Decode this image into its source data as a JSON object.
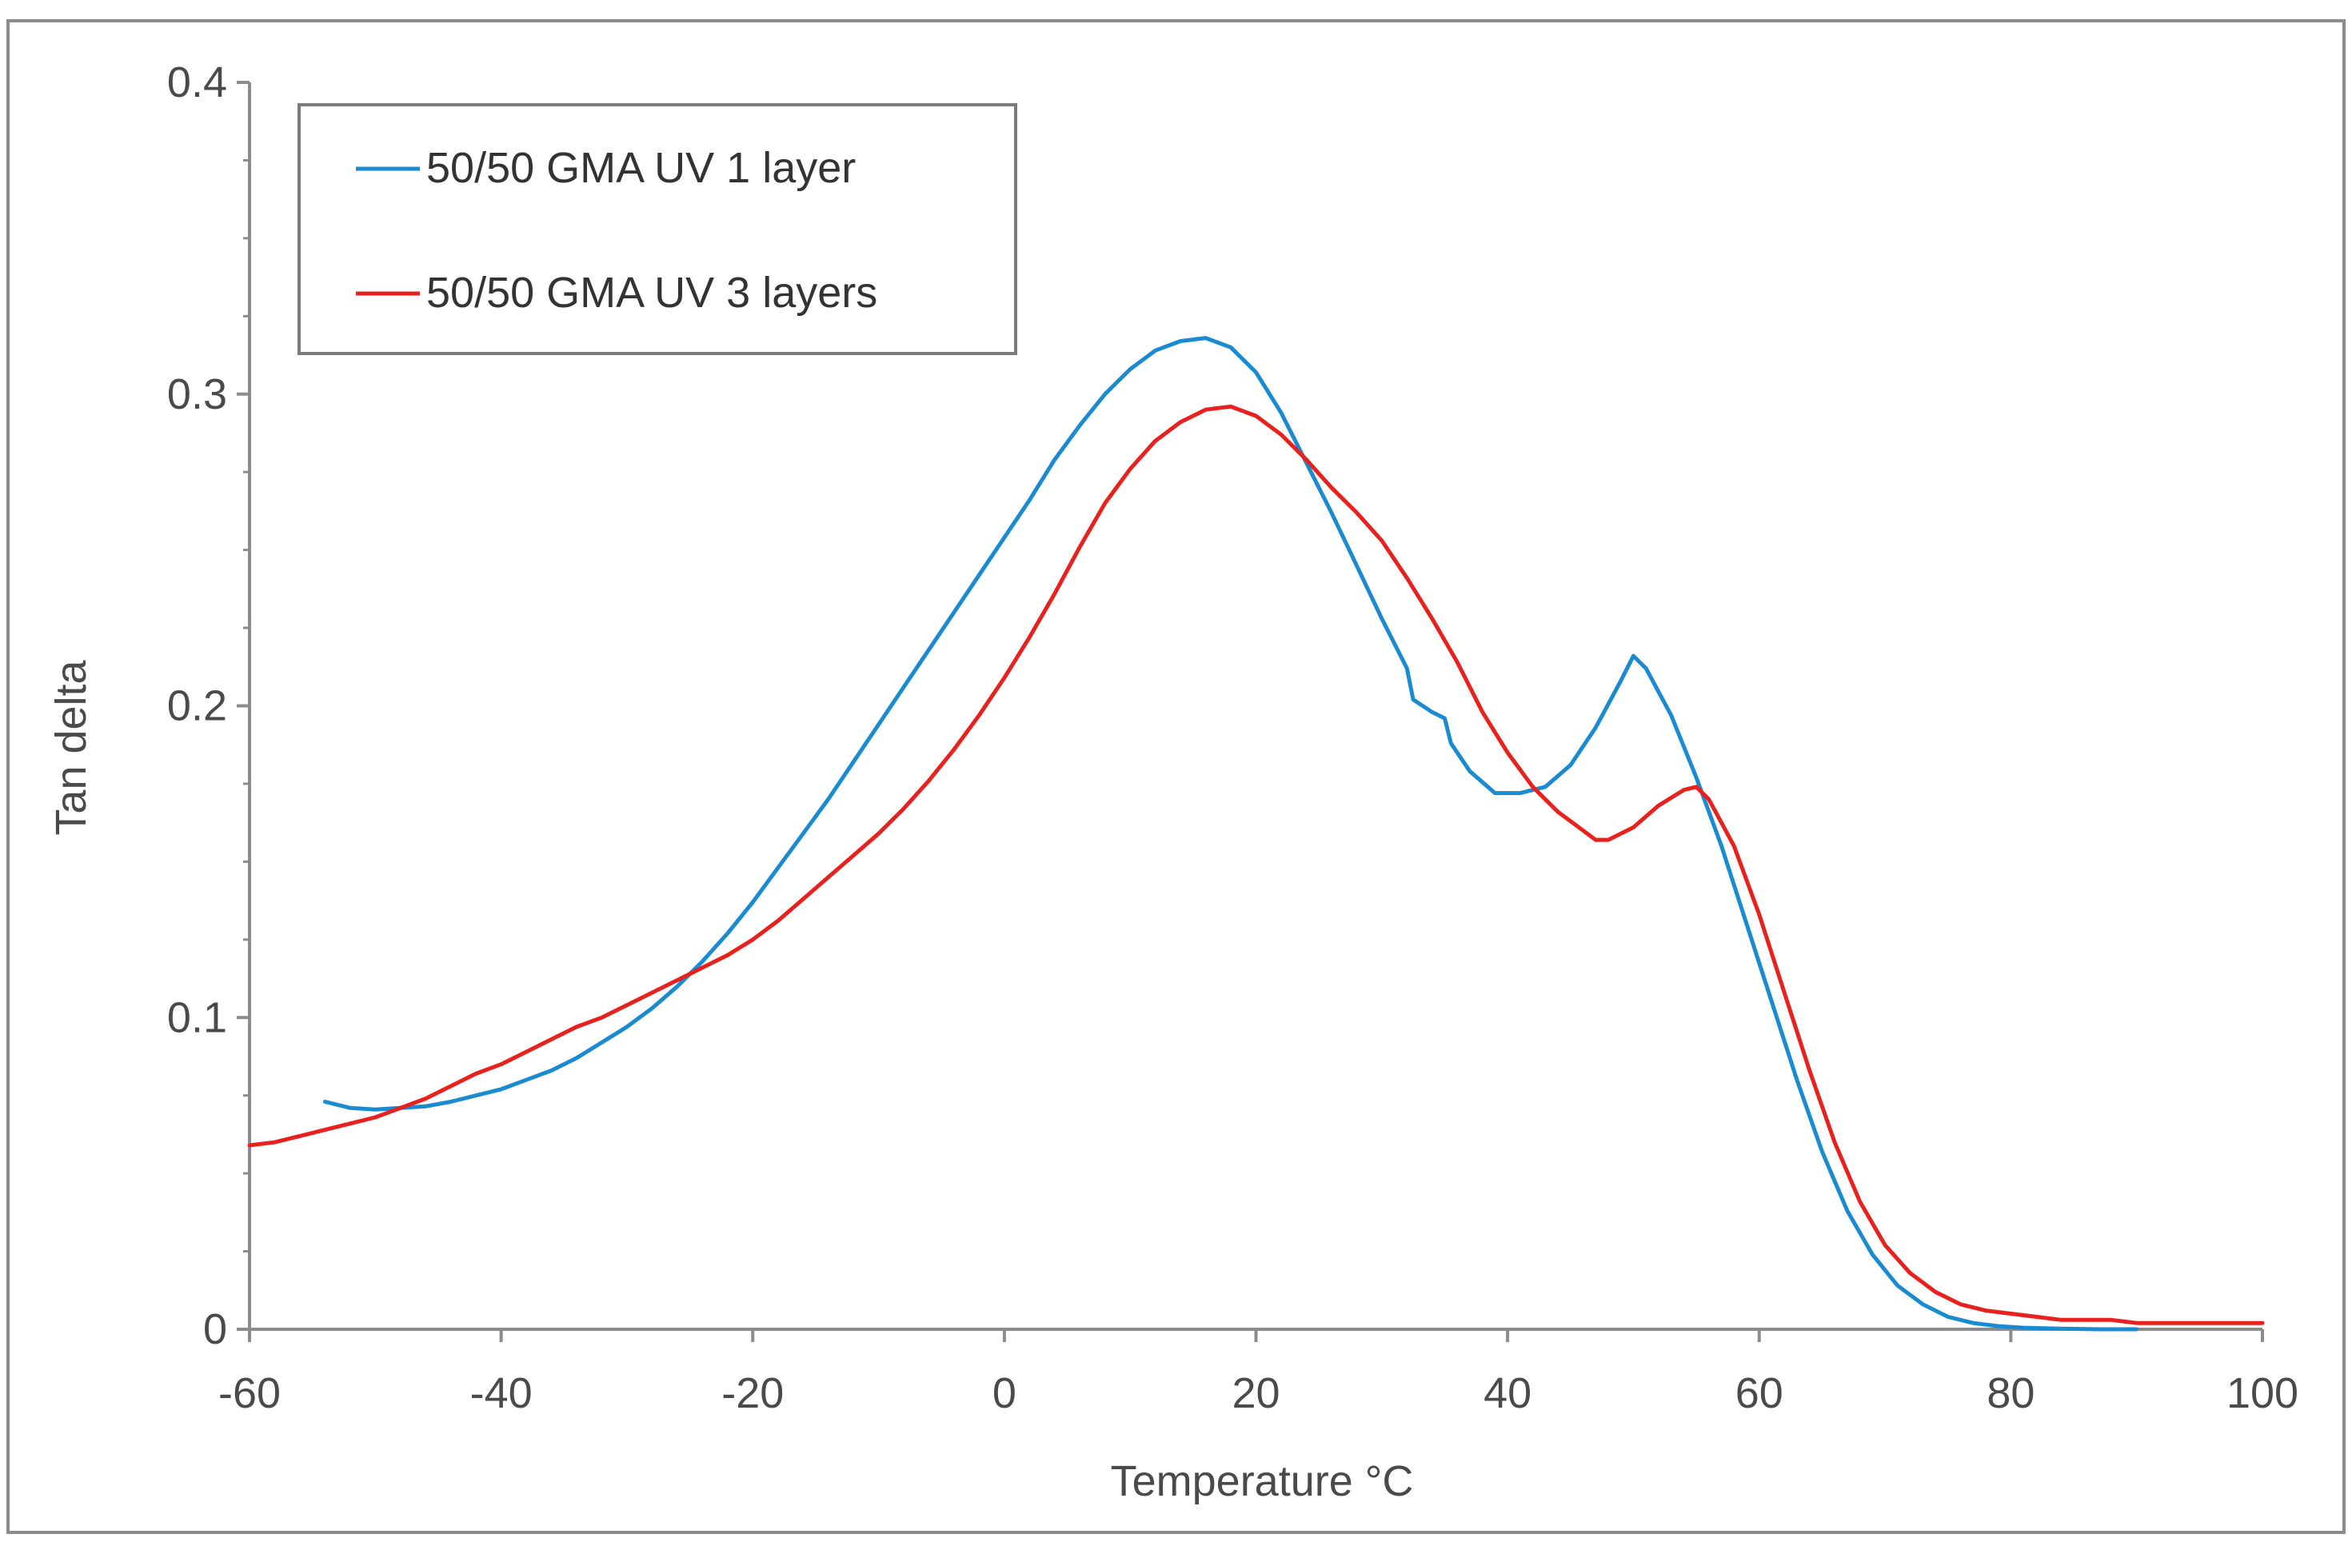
{
  "chart_data": {
    "type": "line",
    "title": "",
    "xlabel": "Temperature °C",
    "ylabel": "Tan delta",
    "xlim": [
      -60,
      100
    ],
    "ylim": [
      0,
      0.4
    ],
    "xticks": [
      -60,
      -40,
      -20,
      0,
      20,
      40,
      60,
      80,
      100
    ],
    "yticks": [
      0,
      0.1,
      0.2,
      0.3,
      0.4
    ],
    "xtick_labels": [
      "-60",
      "-40",
      "-20",
      "0",
      "20",
      "40",
      "60",
      "80",
      "100"
    ],
    "ytick_labels": [
      "0",
      "0.1",
      "0.2",
      "0.3",
      "0.4"
    ],
    "grid": false,
    "legend_position": "top-left",
    "series": [
      {
        "name": "50/50 GMA UV 1 layer",
        "color": "#1a8bd0",
        "x": [
          -54,
          -52,
          -50,
          -48,
          -46,
          -44,
          -42,
          -40,
          -38,
          -36,
          -34,
          -32,
          -30,
          -28,
          -26,
          -24,
          -22,
          -20,
          -18,
          -16,
          -14,
          -12,
          -10,
          -8,
          -6,
          -4,
          -2,
          0,
          2,
          4,
          6,
          8,
          10,
          12,
          14,
          16,
          18,
          20,
          22,
          24,
          26,
          28,
          30,
          32,
          32.5,
          34,
          35,
          35.5,
          37,
          39,
          41,
          43,
          45,
          47,
          49,
          50,
          51,
          53,
          55,
          57,
          59,
          61,
          63,
          65,
          67,
          69,
          71,
          73,
          75,
          77,
          79,
          81,
          84,
          87,
          90
        ],
        "y": [
          0.073,
          0.071,
          0.0705,
          0.071,
          0.0715,
          0.073,
          0.075,
          0.077,
          0.08,
          0.083,
          0.087,
          0.092,
          0.097,
          0.103,
          0.11,
          0.118,
          0.127,
          0.137,
          0.148,
          0.159,
          0.17,
          0.182,
          0.194,
          0.206,
          0.218,
          0.23,
          0.242,
          0.254,
          0.266,
          0.279,
          0.29,
          0.3,
          0.308,
          0.314,
          0.317,
          0.318,
          0.315,
          0.307,
          0.294,
          0.278,
          0.262,
          0.245,
          0.228,
          0.212,
          0.202,
          0.198,
          0.196,
          0.188,
          0.179,
          0.172,
          0.172,
          0.174,
          0.181,
          0.193,
          0.208,
          0.216,
          0.212,
          0.197,
          0.177,
          0.155,
          0.13,
          0.105,
          0.08,
          0.057,
          0.038,
          0.024,
          0.014,
          0.008,
          0.004,
          0.002,
          0.001,
          0.0005,
          0.0002,
          0,
          0
        ]
      },
      {
        "name": "50/50 GMA UV 3 layers",
        "color": "#e8201e",
        "x": [
          -60,
          -58,
          -56,
          -54,
          -52,
          -50,
          -48,
          -46,
          -44,
          -42,
          -40,
          -38,
          -36,
          -34,
          -32,
          -30,
          -28,
          -26,
          -24,
          -22,
          -20,
          -18,
          -16,
          -14,
          -12,
          -10,
          -8,
          -6,
          -4,
          -2,
          0,
          2,
          4,
          6,
          8,
          10,
          12,
          14,
          16,
          18,
          20,
          22,
          24,
          26,
          28,
          30,
          32,
          34,
          36,
          38,
          40,
          42,
          44,
          46,
          47,
          48,
          50,
          52,
          54,
          55,
          56,
          58,
          60,
          62,
          64,
          66,
          68,
          70,
          72,
          74,
          76,
          78,
          80,
          82,
          84,
          86,
          88,
          90,
          92,
          94,
          96,
          98,
          100
        ],
        "y": [
          0.059,
          0.06,
          0.062,
          0.064,
          0.066,
          0.068,
          0.071,
          0.074,
          0.078,
          0.082,
          0.085,
          0.089,
          0.093,
          0.097,
          0.1,
          0.104,
          0.108,
          0.112,
          0.116,
          0.12,
          0.125,
          0.131,
          0.138,
          0.145,
          0.152,
          0.159,
          0.167,
          0.176,
          0.186,
          0.197,
          0.209,
          0.222,
          0.236,
          0.251,
          0.265,
          0.276,
          0.285,
          0.291,
          0.295,
          0.296,
          0.293,
          0.287,
          0.279,
          0.27,
          0.262,
          0.253,
          0.241,
          0.228,
          0.214,
          0.198,
          0.185,
          0.174,
          0.166,
          0.16,
          0.157,
          0.157,
          0.161,
          0.168,
          0.173,
          0.174,
          0.17,
          0.155,
          0.133,
          0.108,
          0.083,
          0.06,
          0.041,
          0.027,
          0.018,
          0.012,
          0.008,
          0.006,
          0.005,
          0.004,
          0.003,
          0.003,
          0.003,
          0.002,
          0.002,
          0.002,
          0.002,
          0.002,
          0.002
        ]
      }
    ]
  }
}
